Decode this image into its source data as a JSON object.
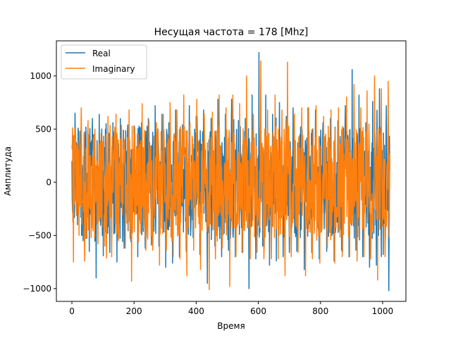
{
  "chart_data": {
    "type": "line",
    "title": "Несущая частота = 178 [Mhz]",
    "xlabel": "Время",
    "ylabel": "Амплитуда",
    "xlim": [
      -50,
      1075
    ],
    "ylim": [
      -1120,
      1330
    ],
    "xticks": [
      0,
      200,
      400,
      600,
      800,
      1000
    ],
    "yticks": [
      -1000,
      -500,
      0,
      500,
      1000
    ],
    "legend_position": "top-left",
    "sample_count": 1024,
    "series": [
      {
        "name": "Real",
        "color": "#1f77b4",
        "anchors": [
          [
            0,
            200
          ],
          [
            5,
            -250
          ],
          [
            10,
            650
          ],
          [
            18,
            -400
          ],
          [
            26,
            480
          ],
          [
            36,
            -550
          ],
          [
            45,
            520
          ],
          [
            56,
            -650
          ],
          [
            66,
            600
          ],
          [
            78,
            -900
          ],
          [
            88,
            640
          ],
          [
            98,
            -500
          ],
          [
            110,
            550
          ],
          [
            122,
            -660
          ],
          [
            132,
            560
          ],
          [
            145,
            -750
          ],
          [
            156,
            600
          ],
          [
            168,
            -620
          ],
          [
            180,
            540
          ],
          [
            190,
            -560
          ],
          [
            200,
            530
          ],
          [
            212,
            -700
          ],
          [
            224,
            560
          ],
          [
            236,
            -620
          ],
          [
            246,
            600
          ],
          [
            256,
            -590
          ],
          [
            268,
            720
          ],
          [
            280,
            -600
          ],
          [
            290,
            640
          ],
          [
            302,
            -800
          ],
          [
            312,
            560
          ],
          [
            324,
            -760
          ],
          [
            334,
            680
          ],
          [
            346,
            -700
          ],
          [
            356,
            540
          ],
          [
            368,
            -650
          ],
          [
            378,
            720
          ],
          [
            390,
            -520
          ],
          [
            400,
            620
          ],
          [
            412,
            -680
          ],
          [
            424,
            680
          ],
          [
            436,
            -950
          ],
          [
            448,
            600
          ],
          [
            460,
            -600
          ],
          [
            470,
            780
          ],
          [
            482,
            -700
          ],
          [
            494,
            640
          ],
          [
            504,
            -640
          ],
          [
            514,
            780
          ],
          [
            526,
            -700
          ],
          [
            536,
            580
          ],
          [
            548,
            -660
          ],
          [
            558,
            600
          ],
          [
            570,
            -1000
          ],
          [
            580,
            820
          ],
          [
            592,
            -720
          ],
          [
            602,
            1220
          ],
          [
            614,
            -600
          ],
          [
            624,
            820
          ],
          [
            636,
            -780
          ],
          [
            646,
            640
          ],
          [
            658,
            -740
          ],
          [
            668,
            750
          ],
          [
            680,
            -700
          ],
          [
            690,
            620
          ],
          [
            700,
            -660
          ],
          [
            712,
            700
          ],
          [
            724,
            -650
          ],
          [
            736,
            520
          ],
          [
            748,
            -820
          ],
          [
            760,
            700
          ],
          [
            772,
            -660
          ],
          [
            784,
            680
          ],
          [
            796,
            -720
          ],
          [
            808,
            560
          ],
          [
            820,
            -650
          ],
          [
            832,
            600
          ],
          [
            844,
            -740
          ],
          [
            856,
            580
          ],
          [
            868,
            -640
          ],
          [
            880,
            720
          ],
          [
            892,
            -700
          ],
          [
            902,
            1060
          ],
          [
            914,
            -640
          ],
          [
            924,
            820
          ],
          [
            936,
            -700
          ],
          [
            946,
            560
          ],
          [
            958,
            -800
          ],
          [
            968,
            760
          ],
          [
            980,
            -780
          ],
          [
            990,
            880
          ],
          [
            1002,
            -680
          ],
          [
            1012,
            720
          ],
          [
            1020,
            -1020
          ],
          [
            1028,
            160
          ]
        ]
      },
      {
        "name": "Imaginary",
        "color": "#ff7f0e",
        "anchors": [
          [
            0,
            350
          ],
          [
            5,
            -750
          ],
          [
            12,
            450
          ],
          [
            20,
            -300
          ],
          [
            30,
            700
          ],
          [
            40,
            -550
          ],
          [
            52,
            580
          ],
          [
            62,
            -520
          ],
          [
            74,
            500
          ],
          [
            84,
            -580
          ],
          [
            94,
            460
          ],
          [
            106,
            -600
          ],
          [
            116,
            620
          ],
          [
            128,
            -700
          ],
          [
            138,
            520
          ],
          [
            150,
            -550
          ],
          [
            160,
            480
          ],
          [
            172,
            -620
          ],
          [
            184,
            680
          ],
          [
            192,
            -930
          ],
          [
            202,
            520
          ],
          [
            214,
            -560
          ],
          [
            226,
            740
          ],
          [
            238,
            -640
          ],
          [
            248,
            580
          ],
          [
            260,
            -640
          ],
          [
            272,
            560
          ],
          [
            282,
            -780
          ],
          [
            294,
            640
          ],
          [
            304,
            -640
          ],
          [
            316,
            750
          ],
          [
            326,
            -700
          ],
          [
            338,
            680
          ],
          [
            348,
            -720
          ],
          [
            360,
            820
          ],
          [
            370,
            -880
          ],
          [
            380,
            560
          ],
          [
            392,
            -640
          ],
          [
            402,
            780
          ],
          [
            414,
            -820
          ],
          [
            426,
            640
          ],
          [
            442,
            -1010
          ],
          [
            452,
            660
          ],
          [
            462,
            -720
          ],
          [
            474,
            820
          ],
          [
            484,
            -620
          ],
          [
            496,
            700
          ],
          [
            508,
            -980
          ],
          [
            518,
            820
          ],
          [
            528,
            -700
          ],
          [
            540,
            740
          ],
          [
            550,
            -660
          ],
          [
            562,
            1000
          ],
          [
            574,
            -720
          ],
          [
            584,
            640
          ],
          [
            596,
            -660
          ],
          [
            608,
            1140
          ],
          [
            618,
            -720
          ],
          [
            630,
            680
          ],
          [
            642,
            -720
          ],
          [
            654,
            820
          ],
          [
            664,
            -720
          ],
          [
            676,
            680
          ],
          [
            686,
            -880
          ],
          [
            694,
            1130
          ],
          [
            706,
            -700
          ],
          [
            716,
            640
          ],
          [
            728,
            -660
          ],
          [
            740,
            700
          ],
          [
            752,
            -880
          ],
          [
            762,
            700
          ],
          [
            774,
            -720
          ],
          [
            786,
            720
          ],
          [
            798,
            -760
          ],
          [
            810,
            620
          ],
          [
            822,
            -620
          ],
          [
            834,
            680
          ],
          [
            846,
            -760
          ],
          [
            858,
            700
          ],
          [
            870,
            -700
          ],
          [
            884,
            800
          ],
          [
            894,
            -700
          ],
          [
            908,
            920
          ],
          [
            918,
            -740
          ],
          [
            930,
            700
          ],
          [
            940,
            -700
          ],
          [
            950,
            860
          ],
          [
            962,
            -720
          ],
          [
            974,
            1000
          ],
          [
            984,
            -920
          ],
          [
            996,
            880
          ],
          [
            1008,
            -700
          ],
          [
            1018,
            950
          ],
          [
            1026,
            -860
          ],
          [
            1030,
            240
          ]
        ]
      }
    ]
  }
}
